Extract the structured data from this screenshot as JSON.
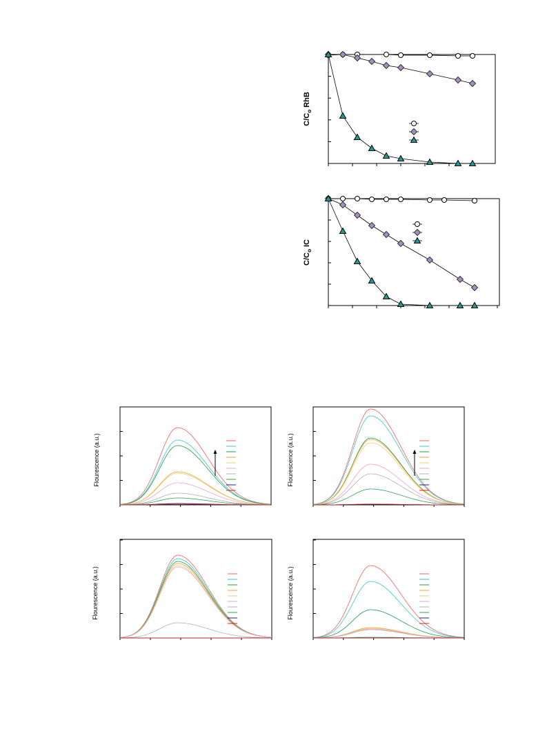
{
  "figure_top": {
    "panels": [
      {
        "ylabel": {
          "main": "C/C",
          "sub": "o",
          "suffix": " RhB"
        }
      },
      {
        "ylabel": {
          "main": "C/C",
          "sub": "o",
          "suffix": " IC"
        }
      }
    ]
  },
  "figure_bottom": {
    "panels": [
      {
        "ylabel": "Flourescence (a.u.)"
      },
      {
        "ylabel": "Flourescence (a.u.)"
      },
      {
        "ylabel": "Flourescence (a.u.)"
      },
      {
        "ylabel": "Flourescence (a.u.)"
      }
    ]
  }
}
